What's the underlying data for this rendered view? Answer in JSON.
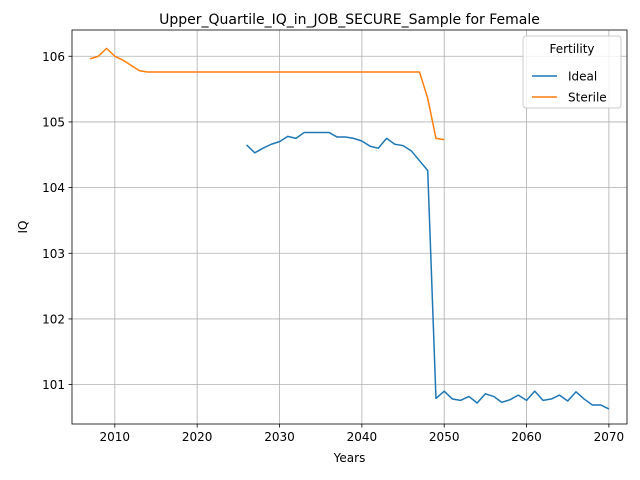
{
  "chart_data": {
    "type": "line",
    "title": "Upper_Quartile_IQ_in_JOB_SECURE_Sample for Female",
    "xlabel": "Years",
    "ylabel": "IQ",
    "xlim": [
      2004.8,
      2072.2
    ],
    "ylim": [
      100.4,
      106.4
    ],
    "xticks": [
      2010,
      2020,
      2030,
      2040,
      2050,
      2060,
      2070
    ],
    "yticks": [
      101,
      102,
      103,
      104,
      105,
      106
    ],
    "grid": true,
    "legend": {
      "title": "Fertility",
      "placement": "top-right"
    },
    "series": [
      {
        "name": "Ideal",
        "color": "#1f77b4",
        "x": [
          2026,
          2027,
          2028,
          2029,
          2030,
          2031,
          2032,
          2033,
          2034,
          2035,
          2036,
          2037,
          2038,
          2039,
          2040,
          2041,
          2042,
          2043,
          2044,
          2045,
          2046,
          2047,
          2048,
          2049,
          2050,
          2051,
          2052,
          2053,
          2054,
          2055,
          2056,
          2057,
          2058,
          2059,
          2060,
          2061,
          2062,
          2063,
          2064,
          2065,
          2066,
          2067,
          2068,
          2069,
          2070
        ],
        "y": [
          104.65,
          104.53,
          104.6,
          104.66,
          104.7,
          104.78,
          104.75,
          104.84,
          104.84,
          104.84,
          104.84,
          104.77,
          104.77,
          104.75,
          104.71,
          104.63,
          104.6,
          104.75,
          104.66,
          104.64,
          104.56,
          104.41,
          104.26,
          100.79,
          100.9,
          100.78,
          100.76,
          100.82,
          100.72,
          100.86,
          100.82,
          100.73,
          100.77,
          100.84,
          100.76,
          100.9,
          100.76,
          100.78,
          100.84,
          100.75,
          100.89,
          100.78,
          100.69,
          100.69,
          100.63
        ]
      },
      {
        "name": "Sterile",
        "color": "#ff7f0e",
        "x": [
          2007,
          2008,
          2009,
          2010,
          2011,
          2012,
          2013,
          2014,
          2015,
          2016,
          2017,
          2018,
          2019,
          2020,
          2021,
          2022,
          2023,
          2024,
          2025,
          2026,
          2027,
          2028,
          2029,
          2030,
          2031,
          2032,
          2033,
          2034,
          2035,
          2036,
          2037,
          2038,
          2039,
          2040,
          2041,
          2042,
          2043,
          2044,
          2045,
          2046,
          2047,
          2048,
          2049,
          2050
        ],
        "y": [
          105.96,
          106.0,
          106.12,
          106.0,
          105.94,
          105.86,
          105.78,
          105.76,
          105.76,
          105.76,
          105.76,
          105.76,
          105.76,
          105.76,
          105.76,
          105.76,
          105.76,
          105.76,
          105.76,
          105.76,
          105.76,
          105.76,
          105.76,
          105.76,
          105.76,
          105.76,
          105.76,
          105.76,
          105.76,
          105.76,
          105.76,
          105.76,
          105.76,
          105.76,
          105.76,
          105.76,
          105.76,
          105.76,
          105.76,
          105.76,
          105.76,
          105.36,
          104.75,
          104.73
        ]
      }
    ]
  }
}
